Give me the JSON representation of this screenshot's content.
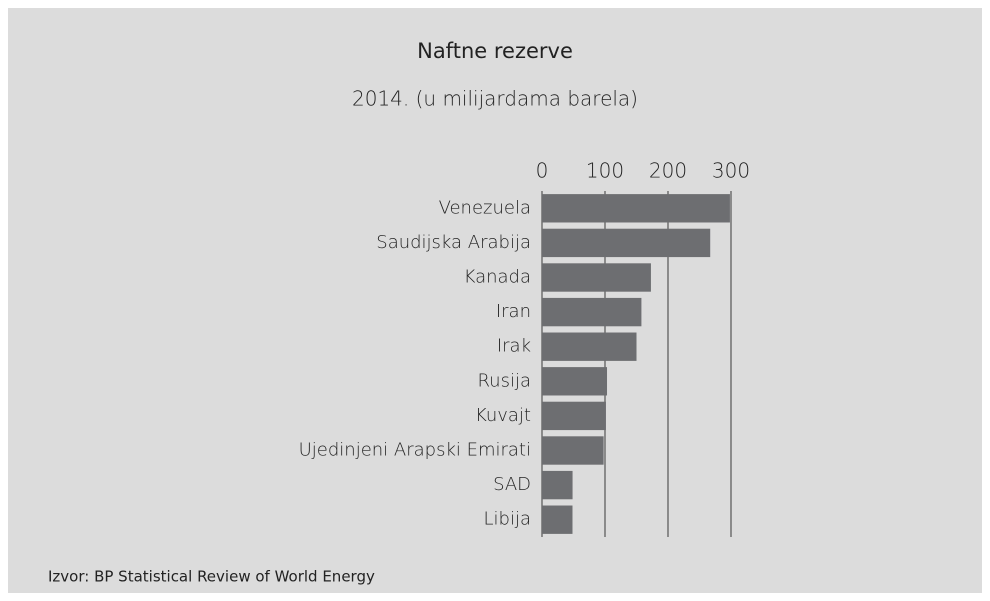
{
  "chart_data": {
    "type": "bar",
    "orientation": "horizontal",
    "title": "Naftne rezerve",
    "subtitle": "2014. (u milijardama barela)",
    "categories": [
      "Venezuela",
      "Saudijska Arabija",
      "Kanada",
      "Iran",
      "Irak",
      "Rusija",
      "Kuvajt",
      "Ujedinjeni Arapski Emirati",
      "SAD",
      "Libija"
    ],
    "values": [
      298.3,
      267.0,
      172.9,
      157.8,
      150.0,
      103.2,
      101.5,
      97.8,
      48.5,
      48.4
    ],
    "color": "#6d6e71",
    "xlim": [
      0,
      300
    ],
    "xticks": [
      0,
      100,
      200,
      300
    ],
    "grid": true,
    "source": "Izvor: BP Statistical Review of World Energy"
  }
}
